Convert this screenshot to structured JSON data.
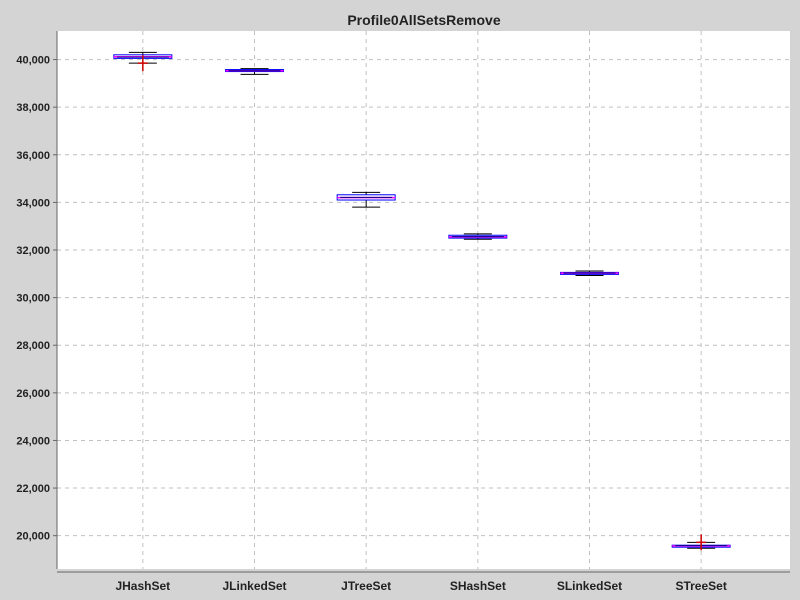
{
  "chart_data": {
    "type": "box",
    "title": "Profile0AllSetsRemove",
    "xlabel": "",
    "ylabel": "",
    "ylim": [
      18600,
      41200
    ],
    "yticks": [
      20000,
      22000,
      24000,
      26000,
      28000,
      30000,
      32000,
      34000,
      36000,
      38000,
      40000
    ],
    "ytick_labels": [
      "20,000",
      "22,000",
      "24,000",
      "26,000",
      "28,000",
      "30,000",
      "32,000",
      "34,000",
      "36,000",
      "38,000",
      "40,000"
    ],
    "grid": true,
    "categories": [
      "JHashSet",
      "JLinkedSet",
      "JTreeSet",
      "SHashSet",
      "SLinkedSet",
      "STreeSet"
    ],
    "boxes": [
      {
        "category": "JHashSet",
        "min": 39850,
        "q1": 40050,
        "median": 40120,
        "q3": 40200,
        "max": 40300,
        "mean": 40100,
        "outliers": [
          39850
        ]
      },
      {
        "category": "JLinkedSet",
        "min": 39380,
        "q1": 39500,
        "median": 39530,
        "q3": 39580,
        "max": 39620,
        "mean": 39530,
        "outliers": []
      },
      {
        "category": "JTreeSet",
        "min": 33800,
        "q1": 34100,
        "median": 34200,
        "q3": 34320,
        "max": 34420,
        "mean": 34210,
        "outliers": []
      },
      {
        "category": "SHashSet",
        "min": 32450,
        "q1": 32500,
        "median": 32550,
        "q3": 32620,
        "max": 32680,
        "mean": 32560,
        "outliers": []
      },
      {
        "category": "SLinkedSet",
        "min": 30930,
        "q1": 30990,
        "median": 31030,
        "q3": 31060,
        "max": 31120,
        "mean": 31030,
        "outliers": []
      },
      {
        "category": "STreeSet",
        "min": 19470,
        "q1": 19540,
        "median": 19570,
        "q3": 19600,
        "max": 19720,
        "mean": 19580,
        "outliers": [
          19720
        ]
      }
    ],
    "colors": {
      "background": "#d4d4d4",
      "plot_background": "#ffffff",
      "grid": "#c0c0c0",
      "box_outline": "#0000ff",
      "median": "#ff00ff",
      "mean": "#000080",
      "whisker": "#000000",
      "outlier": "#cc0000"
    }
  }
}
